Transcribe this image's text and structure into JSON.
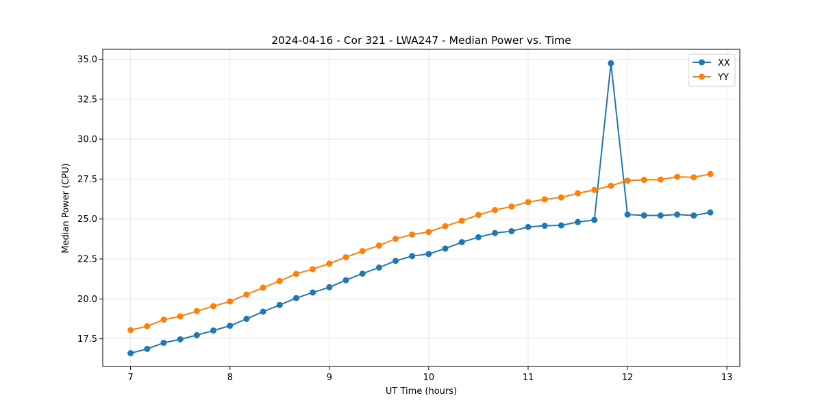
{
  "chart_data": {
    "type": "line",
    "title": "2024-04-16 - Cor 321 - LWA247 - Median Power vs. Time",
    "xlabel": "UT Time (hours)",
    "ylabel": "Median Power (CPU)",
    "xlim": [
      6.72,
      13.13
    ],
    "ylim": [
      15.77,
      35.62
    ],
    "xticks": [
      7,
      8,
      9,
      10,
      11,
      12,
      13
    ],
    "xtick_labels": [
      "7",
      "8",
      "9",
      "10",
      "11",
      "12",
      "13"
    ],
    "yticks": [
      17.5,
      20.0,
      22.5,
      25.0,
      27.5,
      30.0,
      32.5,
      35.0
    ],
    "ytick_labels": [
      "17.5",
      "20.0",
      "22.5",
      "25.0",
      "27.5",
      "30.0",
      "32.5",
      "35.0"
    ],
    "grid": true,
    "legend_position": "top-right",
    "x": [
      7.0,
      7.1667,
      7.3333,
      7.5,
      7.6667,
      7.8333,
      8.0,
      8.1667,
      8.3333,
      8.5,
      8.6667,
      8.8333,
      9.0,
      9.1667,
      9.3333,
      9.5,
      9.6667,
      9.8333,
      10.0,
      10.1667,
      10.3333,
      10.5,
      10.6667,
      10.8333,
      11.0,
      11.1667,
      11.3333,
      11.5,
      11.6667,
      11.8333,
      12.0,
      12.1667,
      12.3333,
      12.5,
      12.6667,
      12.8333
    ],
    "series": [
      {
        "name": "XX",
        "color": "#1f77b4",
        "values": [
          16.6,
          16.87,
          17.25,
          17.47,
          17.73,
          18.02,
          18.32,
          18.75,
          19.2,
          19.62,
          20.05,
          20.4,
          20.73,
          21.17,
          21.58,
          21.96,
          22.38,
          22.68,
          22.81,
          23.15,
          23.55,
          23.86,
          24.12,
          24.24,
          24.5,
          24.58,
          24.6,
          24.81,
          24.94,
          34.75,
          25.28,
          25.23,
          25.22,
          25.28,
          25.22,
          25.41
        ]
      },
      {
        "name": "YY",
        "color": "#ff7f0e",
        "values": [
          18.05,
          18.29,
          18.7,
          18.91,
          19.24,
          19.54,
          19.84,
          20.27,
          20.7,
          21.12,
          21.57,
          21.86,
          22.21,
          22.61,
          22.99,
          23.34,
          23.76,
          24.03,
          24.19,
          24.55,
          24.89,
          25.26,
          25.56,
          25.78,
          26.06,
          26.23,
          26.35,
          26.61,
          26.82,
          27.08,
          27.4,
          27.45,
          27.47,
          27.64,
          27.61,
          27.82
        ]
      }
    ]
  }
}
